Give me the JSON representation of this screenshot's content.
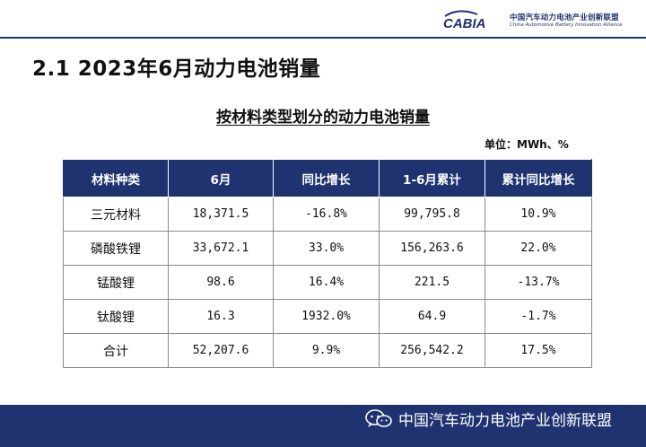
{
  "header": {
    "logo_mark": "CABIA",
    "logo_cn": "中国汽车动力电池产业创新联盟",
    "logo_en": "China Automotive Battery Innovation Alliance",
    "brand_color": "#1f3370"
  },
  "page_title": "2.1  2023年6月动力电池销量",
  "table_caption": "按材料类型划分的动力电池销量",
  "unit_label": "单位：MWh、%",
  "table": {
    "columns": [
      "材料种类",
      "6月",
      "同比增长",
      "1-6月累计",
      "累计同比增长"
    ],
    "rows": [
      [
        "三元材料",
        "18,371.5",
        "-16.8%",
        "99,795.8",
        "10.9%"
      ],
      [
        "磷酸铁锂",
        "33,672.1",
        "33.0%",
        "156,263.6",
        "22.0%"
      ],
      [
        "锰酸锂",
        "98.6",
        "16.4%",
        "221.5",
        "-13.7%"
      ],
      [
        "钛酸锂",
        "16.3",
        "1932.0%",
        "64.9",
        "-1.7%"
      ],
      [
        "合计",
        "52,207.6",
        "9.9%",
        "256,542.2",
        "17.5%"
      ]
    ]
  },
  "footer": {
    "icon": "wechat-icon",
    "text": "中国汽车动力电池产业创新联盟"
  }
}
